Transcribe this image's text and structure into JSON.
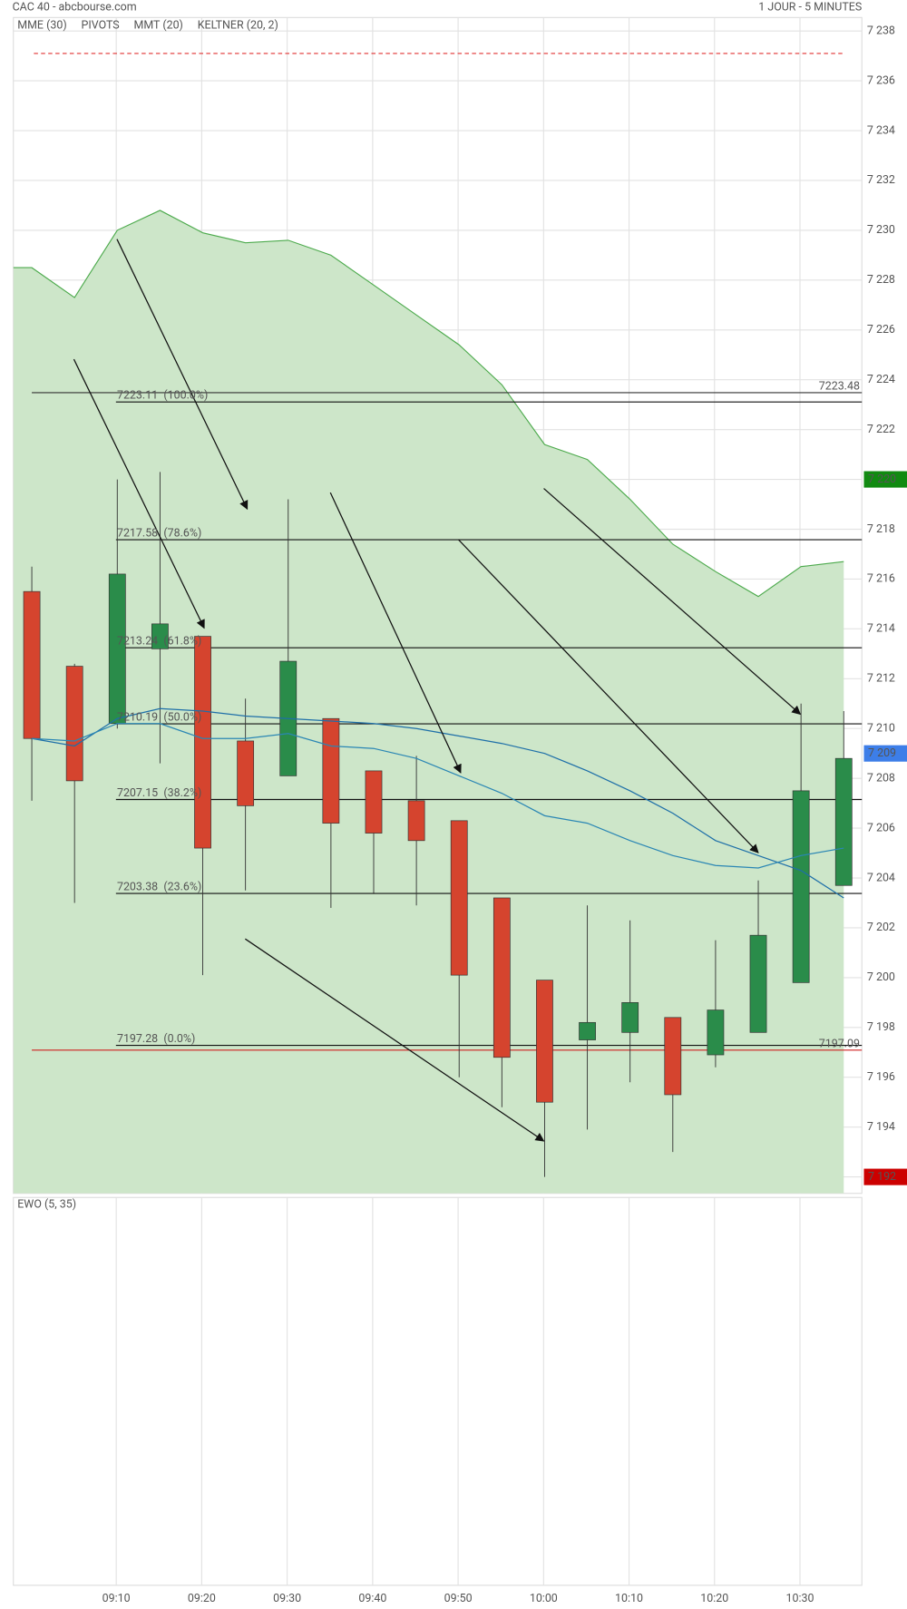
{
  "chart_data": {
    "type": "candlestick",
    "title": "CAC 40 - abcbourse.com",
    "period": "1 JOUR - 5 MINUTES",
    "categories": [
      null,
      null,
      "09:10",
      null,
      "09:20",
      null,
      "09:30",
      null,
      "09:40",
      null,
      "09:50",
      null,
      "10:00",
      null,
      "10:10",
      null,
      "10:20",
      null,
      "10:30",
      null
    ],
    "open": [
      7215.5,
      7212.5,
      7210.2,
      7213.2,
      7213.7,
      7209.5,
      7208.1,
      7210.4,
      7208.3,
      7207.1,
      7206.3,
      7203.2,
      7199.9,
      7197.5,
      7197.8,
      7198.4,
      7196.9,
      7197.8,
      7199.8,
      7203.7
    ],
    "high": [
      7216.5,
      7212.6,
      7220.0,
      7220.3,
      7213.7,
      7211.2,
      7219.2,
      7210.4,
      7208.3,
      7208.9,
      7206.3,
      7203.2,
      7199.9,
      7202.9,
      7202.3,
      7198.4,
      7201.5,
      7203.9,
      7211.0,
      7210.7
    ],
    "low": [
      7207.1,
      7203.0,
      7210.0,
      7208.6,
      7200.1,
      7203.5,
      7208.1,
      7202.8,
      7203.4,
      7202.9,
      7196.0,
      7194.8,
      7192.0,
      7193.9,
      7195.8,
      7193.0,
      7196.4,
      7197.8,
      7199.8,
      7203.7
    ],
    "close": [
      7209.6,
      7207.9,
      7216.2,
      7214.2,
      7205.2,
      7206.9,
      7212.7,
      7206.2,
      7205.8,
      7205.5,
      7200.1,
      7196.8,
      7195.0,
      7198.2,
      7199.0,
      7195.3,
      7198.7,
      7201.7,
      7207.5,
      7208.8
    ],
    "up_color": "#2a8c4a",
    "down_color": "#d5442e",
    "series": [
      {
        "name": "MME (30)",
        "color": "#1e6fa8",
        "values": [
          7209.6,
          7209.3,
          7210.4,
          7210.8,
          7210.7,
          7210.5,
          7210.4,
          7210.3,
          7210.2,
          7210.0,
          7209.7,
          7209.4,
          7209.0,
          7208.3,
          7207.5,
          7206.6,
          7205.5,
          7204.9,
          7204.3,
          7203.2
        ]
      },
      {
        "name": "MMT (20)",
        "color": "#2a86b4",
        "values": [
          7209.6,
          7209.5,
          7210.2,
          7210.2,
          7209.6,
          7209.6,
          7209.8,
          7209.3,
          7209.2,
          7208.8,
          7208.1,
          7207.4,
          7206.5,
          7206.2,
          7205.5,
          7204.9,
          7204.5,
          7204.4,
          7204.9,
          7205.2
        ]
      },
      {
        "name": "KELTNER (20, 2)",
        "color": "#4caa4c",
        "fill": "#cde6c9",
        "values": [
          7228.5,
          7227.3,
          7230.0,
          7230.8,
          7229.9,
          7229.5,
          7229.6,
          7229.0,
          7227.8,
          7226.6,
          7225.4,
          7223.8,
          7221.4,
          7220.8,
          7219.2,
          7217.4,
          7216.3,
          7215.3,
          7216.5,
          7216.7
        ]
      }
    ],
    "pivots_label": "PIVOTS",
    "pivots_color": "#555555",
    "fibonacci": [
      {
        "value": 7223.11,
        "label": "7223.11  (100.0%)"
      },
      {
        "value": 7217.58,
        "label": "7217.58  (78.6%)"
      },
      {
        "value": 7213.24,
        "label": "7213.24  (61.8%)"
      },
      {
        "value": 7210.19,
        "label": "7210.19  (50.0%)"
      },
      {
        "value": 7207.15,
        "label": "7207.15  (38.2%)"
      },
      {
        "value": 7203.38,
        "label": "7203.38  (23.6%)"
      },
      {
        "value": 7197.28,
        "label": "7197.28  (0.0%)"
      }
    ],
    "levels": [
      {
        "value": 7223.48,
        "color": "#333333"
      },
      {
        "value": 7197.09,
        "color": "#d02020"
      }
    ],
    "dashed_level": {
      "value": 7237.1,
      "color": "#e03030"
    },
    "price_markers": [
      {
        "value": 7220,
        "label": "7 220",
        "color": "#118a11"
      },
      {
        "value": 7209,
        "label": "7 209",
        "color": "#3d7ee8"
      },
      {
        "value": 7192,
        "label": "7 192",
        "color": "#cc0000"
      }
    ],
    "ylim": [
      7191.34,
      7238.54
    ],
    "yticks": [
      {
        "value": 7192,
        "label": "7 192"
      },
      {
        "value": 7194,
        "label": "7 194"
      },
      {
        "value": 7196,
        "label": "7 196"
      },
      {
        "value": 7198,
        "label": "7 198"
      },
      {
        "value": 7200,
        "label": "7 200"
      },
      {
        "value": 7202,
        "label": "7 202"
      },
      {
        "value": 7204,
        "label": "7 204"
      },
      {
        "value": 7206,
        "label": "7 206"
      },
      {
        "value": 7208,
        "label": "7 208"
      },
      {
        "value": 7210,
        "label": "7 210"
      },
      {
        "value": 7212,
        "label": "7 212"
      },
      {
        "value": 7214,
        "label": "7 214"
      },
      {
        "value": 7216,
        "label": "7 216"
      },
      {
        "value": 7218,
        "label": "7 218"
      },
      {
        "value": 7220,
        "label": "7 220"
      },
      {
        "value": 7222,
        "label": "7 222"
      },
      {
        "value": 7224,
        "label": "7 224"
      },
      {
        "value": 7226,
        "label": "7 226"
      },
      {
        "value": 7228,
        "label": "7 228"
      },
      {
        "value": 7230,
        "label": "7 230"
      },
      {
        "value": 7232,
        "label": "7 232"
      },
      {
        "value": 7234,
        "label": "7 234"
      },
      {
        "value": 7236,
        "label": "7 236"
      },
      {
        "value": 7238,
        "label": "7 238"
      }
    ],
    "grid": true,
    "lower_panel": {
      "title": "EWO (5, 35)",
      "color": "#3a9a3a"
    }
  }
}
